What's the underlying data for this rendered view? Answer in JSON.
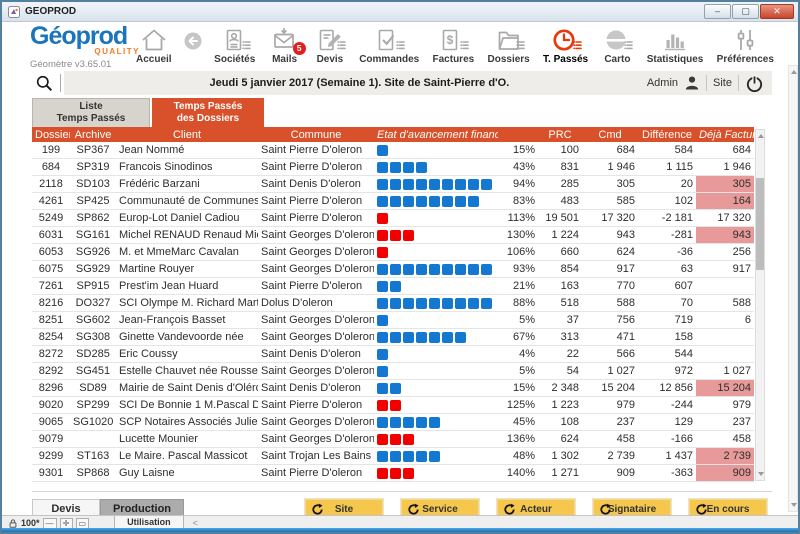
{
  "window": {
    "title": "GEOPROD"
  },
  "brand": {
    "name": "Géoprod",
    "quality": "QUALITY",
    "version": "Géomètre v3.65.01"
  },
  "toolbar": {
    "items": [
      {
        "key": "accueil",
        "label": "Accueil",
        "icon": "home-icon"
      },
      {
        "key": "back",
        "label": "",
        "icon": "back-arrow-icon"
      },
      {
        "key": "societes",
        "label": "Sociétés",
        "icon": "company-card-icon",
        "list": true
      },
      {
        "key": "mails",
        "label": "Mails",
        "icon": "mail-icon",
        "badge": "5"
      },
      {
        "key": "devis",
        "label": "Devis",
        "icon": "quote-pencil-icon",
        "list": true
      },
      {
        "key": "commandes",
        "label": "Commandes",
        "icon": "order-check-icon",
        "list": true
      },
      {
        "key": "factures",
        "label": "Factures",
        "icon": "invoice-dollar-icon",
        "list": true
      },
      {
        "key": "dossiers",
        "label": "Dossiers",
        "icon": "folder-icon",
        "list": true
      },
      {
        "key": "t-passes",
        "label": "T. Passés",
        "icon": "clock-icon",
        "list": true,
        "active": true
      },
      {
        "key": "carto",
        "label": "Carto",
        "icon": "globe-icon",
        "list": true
      },
      {
        "key": "statistiques",
        "label": "Statistiques",
        "icon": "bar-chart-icon"
      },
      {
        "key": "preferences",
        "label": "Préférences",
        "icon": "sliders-icon"
      }
    ]
  },
  "infobar": {
    "date_text": "Jeudi 5 janvier 2017 (Semaine 1). Site de Saint-Pierre d'O.",
    "user": "Admin",
    "site_label": "Site"
  },
  "tabs": [
    {
      "key": "liste-temps-passes",
      "line1": "Liste",
      "line2": "Temps Passés",
      "active": false
    },
    {
      "key": "temps-passes-dossiers",
      "line1": "Temps Passés",
      "line2": "des Dossiers",
      "active": true
    }
  ],
  "table": {
    "headers": [
      {
        "label": "Dossier"
      },
      {
        "label": "Archive"
      },
      {
        "label": "Client"
      },
      {
        "label": "Commune"
      },
      {
        "label": "Etat d'avancement financier"
      },
      {
        "label": ""
      },
      {
        "label": "PRC"
      },
      {
        "label": "Cmd"
      },
      {
        "label": "Différence"
      },
      {
        "label": "Déjà Facturé"
      }
    ],
    "rows": [
      {
        "dossier": "199",
        "archive": "SP367",
        "client": "Jean Nommé",
        "commune": "Saint Pierre D'oleron",
        "squares": 1,
        "square_color": "blue",
        "pct": "15%",
        "pct_red": false,
        "prc": "100",
        "cmd": "684",
        "diff": "584",
        "diff_red": false,
        "deja": "684",
        "deja_hl": false
      },
      {
        "dossier": "684",
        "archive": "SP319",
        "client": "Francois Sinodinos",
        "commune": "Saint Pierre D'oleron",
        "squares": 4,
        "square_color": "blue",
        "pct": "43%",
        "pct_red": false,
        "prc": "831",
        "cmd": "1 946",
        "diff": "1 115",
        "diff_red": false,
        "deja": "1 946",
        "deja_hl": false
      },
      {
        "dossier": "2118",
        "archive": "SD103",
        "client": "Frédéric Barzani",
        "commune": "Saint Denis D'oleron",
        "squares": 9,
        "square_color": "blue",
        "pct": "94%",
        "pct_red": false,
        "prc": "285",
        "cmd": "305",
        "diff": "20",
        "diff_red": false,
        "deja": "305",
        "deja_hl": true
      },
      {
        "dossier": "4261",
        "archive": "SP425",
        "client": "Communauté de Communes Le",
        "commune": "Saint Pierre D'oleron",
        "squares": 8,
        "square_color": "blue",
        "pct": "83%",
        "pct_red": false,
        "prc": "483",
        "cmd": "585",
        "diff": "102",
        "diff_red": false,
        "deja": "164",
        "deja_hl": true
      },
      {
        "dossier": "5249",
        "archive": "SP862",
        "client": "Europ-Lot  Daniel Cadiou",
        "commune": "Saint Pierre D'oleron",
        "squares": 1,
        "square_color": "red",
        "pct": "113%",
        "pct_red": true,
        "prc": "19 501",
        "cmd": "17 320",
        "diff": "-2 181",
        "diff_red": true,
        "deja": "17 320",
        "deja_hl": false
      },
      {
        "dossier": "6031",
        "archive": "SG161",
        "client": "Michel RENAUD Renaud Michel",
        "commune": "Saint Georges D'oleron",
        "squares": 3,
        "square_color": "red",
        "pct": "130%",
        "pct_red": true,
        "prc": "1 224",
        "cmd": "943",
        "diff": "-281",
        "diff_red": true,
        "deja": "943",
        "deja_hl": true
      },
      {
        "dossier": "6053",
        "archive": "SG926",
        "client": "M. et MmeMarc Cavalan",
        "commune": "Saint Georges D'oleron",
        "squares": 1,
        "square_color": "red",
        "pct": "106%",
        "pct_red": true,
        "prc": "660",
        "cmd": "624",
        "diff": "-36",
        "diff_red": true,
        "deja": "256",
        "deja_hl": false
      },
      {
        "dossier": "6075",
        "archive": "SG929",
        "client": "Martine Rouyer",
        "commune": "Saint Georges D'oleron",
        "squares": 9,
        "square_color": "blue",
        "pct": "93%",
        "pct_red": false,
        "prc": "854",
        "cmd": "917",
        "diff": "63",
        "diff_red": false,
        "deja": "917",
        "deja_hl": false
      },
      {
        "dossier": "7261",
        "archive": "SP915",
        "client": "Prest'im Jean Huard",
        "commune": "Saint Pierre D'oleron",
        "squares": 2,
        "square_color": "blue",
        "pct": "21%",
        "pct_red": false,
        "prc": "163",
        "cmd": "770",
        "diff": "607",
        "diff_red": false,
        "deja": "",
        "deja_hl": false
      },
      {
        "dossier": "8216",
        "archive": "DO327",
        "client": "SCI Olympe M. Richard Martin",
        "commune": "Dolus D'oleron",
        "squares": 9,
        "square_color": "blue",
        "pct": "88%",
        "pct_red": false,
        "prc": "518",
        "cmd": "588",
        "diff": "70",
        "diff_red": false,
        "deja": "588",
        "deja_hl": false
      },
      {
        "dossier": "8251",
        "archive": "SG602",
        "client": "Jean-François Basset",
        "commune": "Saint Georges D'oleron",
        "squares": 1,
        "square_color": "blue",
        "pct": "5%",
        "pct_red": false,
        "prc": "37",
        "cmd": "756",
        "diff": "719",
        "diff_red": false,
        "deja": "6",
        "deja_hl": false
      },
      {
        "dossier": "8254",
        "archive": "SG308",
        "client": "Ginette Vandevoorde née",
        "commune": "Saint Georges D'oleron",
        "squares": 7,
        "square_color": "blue",
        "pct": "67%",
        "pct_red": false,
        "prc": "313",
        "cmd": "471",
        "diff": "158",
        "diff_red": false,
        "deja": "",
        "deja_hl": false
      },
      {
        "dossier": "8272",
        "archive": "SD285",
        "client": "Eric Coussy",
        "commune": "Saint Denis D'oleron",
        "squares": 1,
        "square_color": "blue",
        "pct": "4%",
        "pct_red": false,
        "prc": "22",
        "cmd": "566",
        "diff": "544",
        "diff_red": false,
        "deja": "",
        "deja_hl": false
      },
      {
        "dossier": "8292",
        "archive": "SG451",
        "client": "Estelle Chauvet née Rousseau",
        "commune": "Saint Georges D'oleron",
        "squares": 1,
        "square_color": "blue",
        "pct": "5%",
        "pct_red": false,
        "prc": "54",
        "cmd": "1 027",
        "diff": "972",
        "diff_red": false,
        "deja": "1 027",
        "deja_hl": false
      },
      {
        "dossier": "8296",
        "archive": "SD89",
        "client": "Mairie de Saint Denis d'Oléron",
        "commune": "Saint Denis D'oleron",
        "squares": 2,
        "square_color": "blue",
        "pct": "15%",
        "pct_red": false,
        "prc": "2 348",
        "cmd": "15 204",
        "diff": "12 856",
        "diff_red": false,
        "deja": "15 204",
        "deja_hl": true
      },
      {
        "dossier": "9020",
        "archive": "SP299",
        "client": "SCI De Bonnie 1 M.Pascal De",
        "commune": "Saint Pierre D'oleron",
        "squares": 2,
        "square_color": "red",
        "pct": "125%",
        "pct_red": true,
        "prc": "1 223",
        "cmd": "979",
        "diff": "-244",
        "diff_red": true,
        "deja": "979",
        "deja_hl": false
      },
      {
        "dossier": "9065",
        "archive": "SG1020",
        "client": "SCP Notaires Associés Julien",
        "commune": "Saint Georges D'oleron",
        "squares": 5,
        "square_color": "blue",
        "pct": "45%",
        "pct_red": false,
        "prc": "108",
        "cmd": "237",
        "diff": "129",
        "diff_red": false,
        "deja": "237",
        "deja_hl": false
      },
      {
        "dossier": "9079",
        "archive": "",
        "client": "Lucette Mounier",
        "commune": "Saint Georges D'oleron",
        "squares": 3,
        "square_color": "red",
        "pct": "136%",
        "pct_red": true,
        "prc": "624",
        "cmd": "458",
        "diff": "-166",
        "diff_red": true,
        "deja": "458",
        "deja_hl": false
      },
      {
        "dossier": "9299",
        "archive": "ST163",
        "client": "Le Maire. Pascal Massicot",
        "commune": "Saint Trojan Les Bains",
        "squares": 5,
        "square_color": "blue",
        "pct": "48%",
        "pct_red": false,
        "prc": "1 302",
        "cmd": "2 739",
        "diff": "1 437",
        "diff_red": false,
        "deja": "2 739",
        "deja_hl": true
      },
      {
        "dossier": "9301",
        "archive": "SP868",
        "client": "Guy Laisne",
        "commune": "Saint Pierre D'oleron",
        "squares": 3,
        "square_color": "red",
        "pct": "140%",
        "pct_red": true,
        "prc": "1 271",
        "cmd": "909",
        "diff": "-363",
        "diff_red": true,
        "deja": "909",
        "deja_hl": true
      }
    ]
  },
  "footer": {
    "devis_label": "Devis",
    "production_label": "Production",
    "refresh_buttons": [
      {
        "key": "site",
        "label": "Site"
      },
      {
        "key": "service",
        "label": "Service"
      },
      {
        "key": "acteur",
        "label": "Acteur"
      },
      {
        "key": "signataire",
        "label": "Signataire"
      },
      {
        "key": "en-cours",
        "label": "En cours"
      }
    ]
  },
  "statusbar": {
    "zoom_label": "100*",
    "tab_label": "Utilisation",
    "nav_arrow": "<"
  },
  "colors": {
    "accent_orange": "#D8512B",
    "square_blue": "#1478D0",
    "square_red": "#F20000",
    "highlight_pink": "#E89A9A",
    "negative_red": "#E8403A",
    "button_yellow": "#F5C74D",
    "logo_blue": "#1B75BC",
    "logo_orange": "#F47B20",
    "badge_red": "#E02020"
  }
}
